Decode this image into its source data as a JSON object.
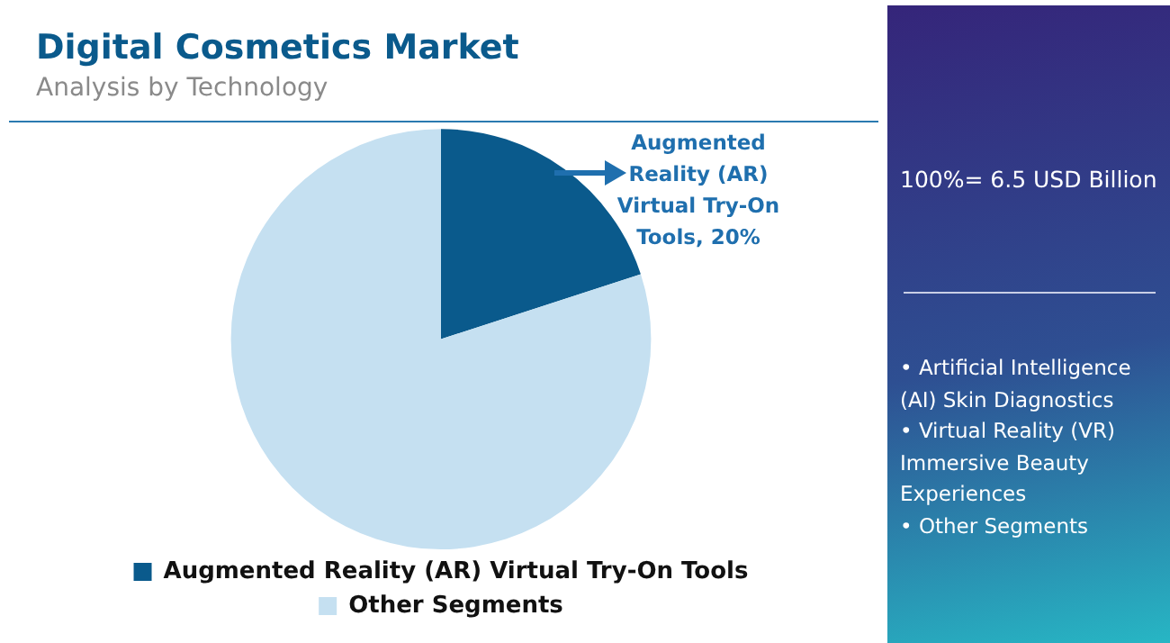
{
  "chart_data": {
    "type": "pie",
    "title": "Digital Cosmetics Market",
    "subtitle": "Analysis by Technology",
    "categories": [
      "Augmented Reality (AR) Virtual Try-On Tools",
      "Other Segments"
    ],
    "values": [
      20,
      80
    ],
    "colors": [
      "#0a5a8c",
      "#c5e0f1"
    ],
    "value_labels": [
      "Augmented Reality (AR) Virtual Try-On Tools, 20%",
      null
    ],
    "legend": "bottom",
    "annotations": [
      "100%= 6.5 USD Billion",
      "• Artificial Intelligence (AI) Skin Diagnostics\n• Virtual Reality (VR) Immersive Beauty Experiences\n• Other Segments"
    ]
  }
}
